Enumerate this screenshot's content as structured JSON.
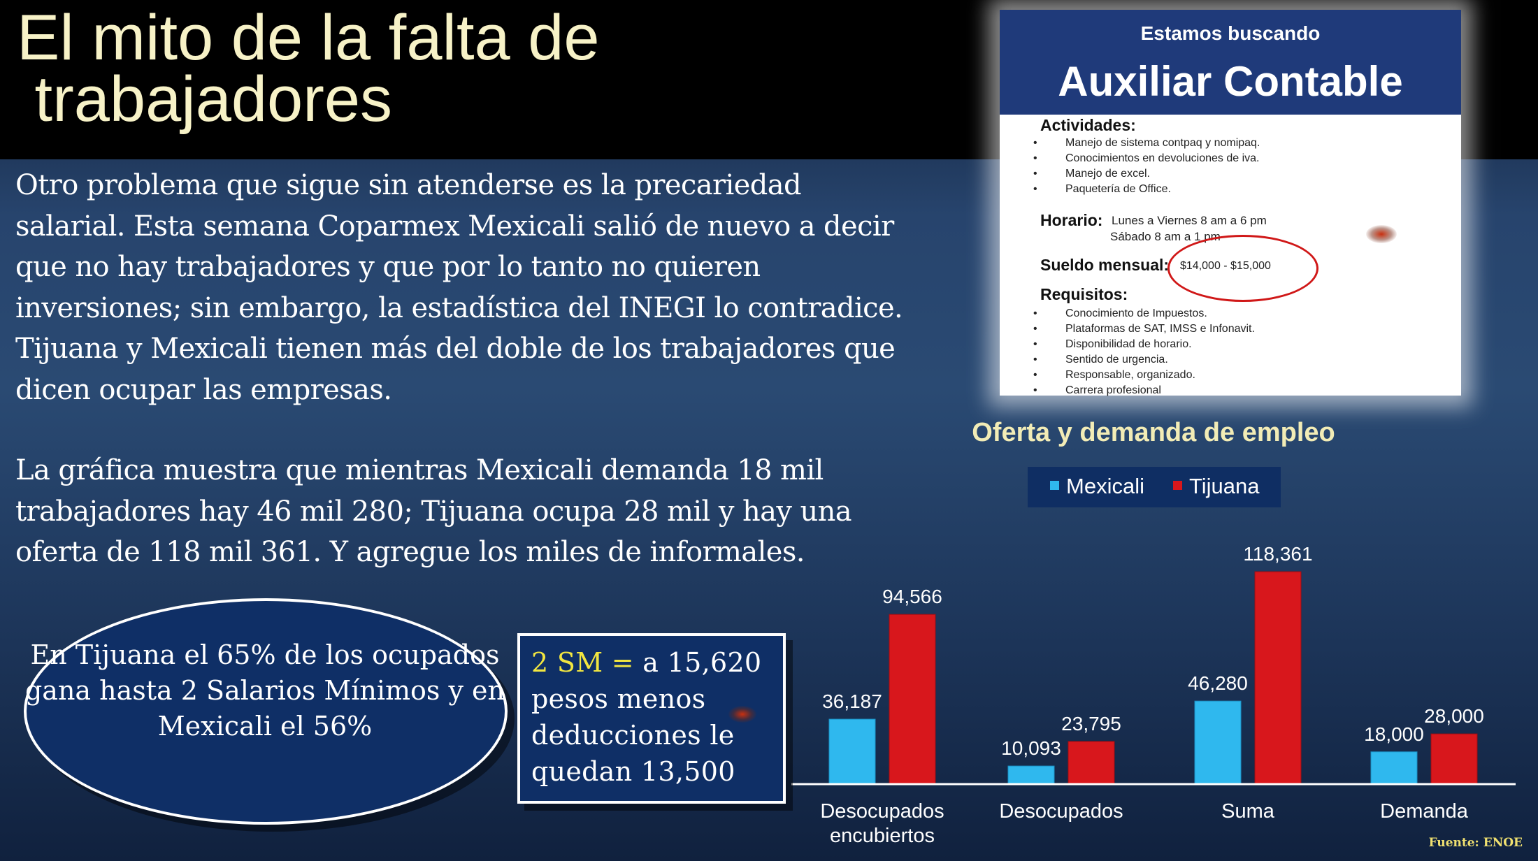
{
  "slide": {
    "title": "El mito de la falta de\n trabajadores",
    "paragraph1": "Otro problema que sigue sin atenderse es la precariedad salarial. Esta semana Coparmex Mexicali salió de nuevo a decir que no hay trabajadores y que por lo tanto no quieren inversiones; sin embargo, la estadística del INEGI  lo contradice. Tijuana y Mexicali tienen más del doble de los trabajadores que dicen ocupar las empresas.",
    "paragraph2": "La gráfica muestra que mientras Mexicali demanda 18 mil trabajadores hay 46 mil 280; Tijuana ocupa 28 mil y hay una oferta de 118 mil 361. Y agregue los miles de informales.",
    "source": "Fuente: ENOE"
  },
  "job_ad": {
    "kicker": "Estamos buscando",
    "title": "Auxiliar Contable",
    "activities_label": "Actividades:",
    "activities": [
      "Manejo de sistema contpaq y nomipaq.",
      "Conocimientos en devoluciones de iva.",
      "Manejo de excel.",
      "Paquetería de Office."
    ],
    "schedule_label": "Horario:",
    "schedule_line1": "Lunes a Viernes 8 am a 6 pm",
    "schedule_line2": "Sábado 8 am a 1 pm",
    "salary_label": "Sueldo mensual:",
    "salary_value": "$14,000 - $15,000",
    "requirements_label": "Requisitos:",
    "requirements": [
      "Conocimiento de Impuestos.",
      "Plataformas de SAT, IMSS e Infonavit.",
      "Disponibilidad de horario.",
      "Sentido de urgencia.",
      "Responsable, organizado.",
      "Carrera profesional"
    ]
  },
  "callouts": {
    "oval_text": "En Tijuana el 65% de los ocupados gana hasta 2 Salarios Mínimos y en Mexicali el 56%",
    "sm_highlight": "2 SM =",
    "sm_rest": " a 15,620 pesos menos deducciones le quedan  13,500"
  },
  "chart_data": {
    "type": "bar",
    "title": "Oferta y demanda de empleo",
    "categories": [
      "Desocupados encubiertos",
      "Desocupados",
      "Suma",
      "Demanda"
    ],
    "series": [
      {
        "name": "Mexicali",
        "values": [
          36187,
          10093,
          46280,
          18000
        ],
        "labels": [
          "36,187",
          "10,093",
          "46,280",
          "18,000"
        ],
        "color": "#2fb8ee"
      },
      {
        "name": "Tijuana",
        "values": [
          94566,
          23795,
          118361,
          28000
        ],
        "labels": [
          "94,566",
          "23,795",
          "118,361",
          "28,000"
        ],
        "color": "#d8171c"
      }
    ],
    "legend_position": "top",
    "grid": false,
    "xlabel": "",
    "ylabel": ""
  }
}
